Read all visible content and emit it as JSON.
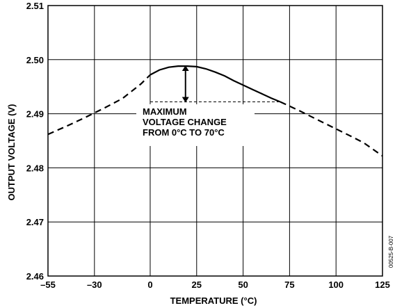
{
  "chart_data": {
    "type": "line",
    "xlabel": "TEMPERATURE (°C)",
    "ylabel": "OUTPUT VOLTAGE (V)",
    "xlim": [
      -55,
      125
    ],
    "ylim": [
      2.46,
      2.51
    ],
    "x_ticks": [
      "–55",
      "–30",
      "0",
      "25",
      "50",
      "75",
      "100",
      "125"
    ],
    "x_tick_values": [
      -55,
      -30,
      0,
      25,
      50,
      75,
      100,
      125
    ],
    "y_ticks": [
      "2.46",
      "2.47",
      "2.48",
      "2.49",
      "2.50",
      "2.51"
    ],
    "y_tick_values": [
      2.46,
      2.47,
      2.48,
      2.49,
      2.5,
      2.51
    ],
    "grid": true,
    "series": [
      {
        "x": [
          -55,
          -45,
          -35,
          -25,
          -15,
          -5,
          0,
          5,
          10,
          15,
          20,
          25,
          30,
          35,
          40,
          45,
          50,
          55,
          60,
          65,
          70,
          75,
          80,
          90,
          100,
          110,
          115,
          125
        ],
        "y": [
          2.4862,
          2.4877,
          2.4893,
          2.491,
          2.4928,
          2.4955,
          2.4972,
          2.4981,
          2.4986,
          2.4988,
          2.4988,
          2.4987,
          2.4983,
          2.4977,
          2.497,
          2.4961,
          2.4953,
          2.4945,
          2.4937,
          2.4929,
          2.4922,
          2.4914,
          2.4906,
          2.4889,
          2.4872,
          2.4855,
          2.4846,
          2.4822
        ],
        "solid_range": [
          0,
          70
        ]
      }
    ],
    "annotations": [
      {
        "text_lines": [
          "MAXIMUM",
          "VOLTAGE CHANGE",
          "FROM 0°C TO 70°C"
        ],
        "arrow_from": 2.4988,
        "arrow_to": 2.4922,
        "arrow_x": 19
      }
    ],
    "figure_id": "00525-B-007"
  }
}
